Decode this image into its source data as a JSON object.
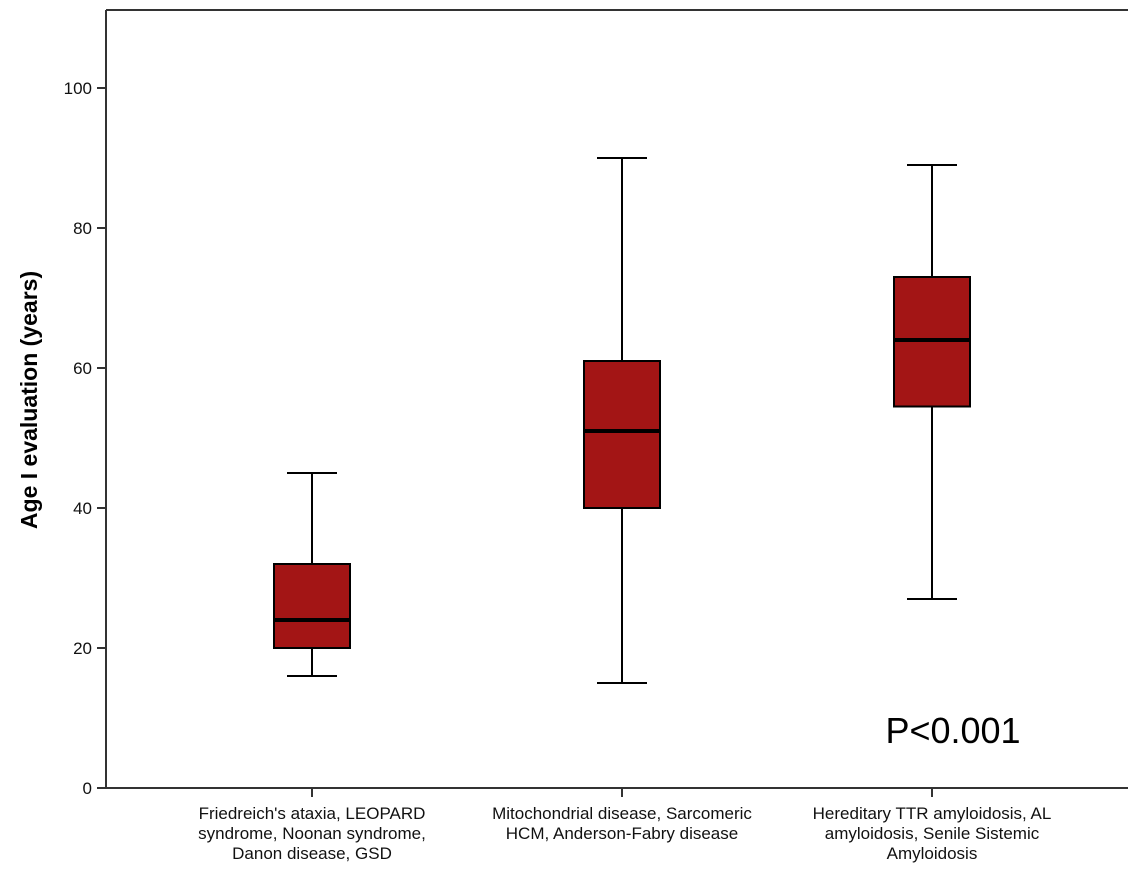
{
  "chart_data": {
    "type": "box",
    "ylabel": "Age I evaluation (years)",
    "ylim": [
      0,
      110
    ],
    "yticks": [
      0,
      20,
      40,
      60,
      80,
      100
    ],
    "categories": [
      [
        "Friedreich's ataxia, LEOPARD",
        "syndrome, Noonan syndrome,",
        "Danon disease, GSD"
      ],
      [
        "Mitochondrial disease, Sarcomeric",
        "HCM, Anderson-Fabry disease"
      ],
      [
        "Hereditary TTR amyloidosis, AL",
        "amyloidosis, Senile Sistemic",
        "Amyloidosis"
      ]
    ],
    "boxes": [
      {
        "min": 16,
        "q1": 20,
        "median": 24,
        "q3": 32,
        "max": 45
      },
      {
        "min": 15,
        "q1": 40,
        "median": 51,
        "q3": 61,
        "max": 90
      },
      {
        "min": 27,
        "q1": 54.5,
        "median": 64,
        "q3": 73,
        "max": 89
      }
    ],
    "box_color": "#a31515",
    "grid": false,
    "annotation": "P<0.001"
  }
}
